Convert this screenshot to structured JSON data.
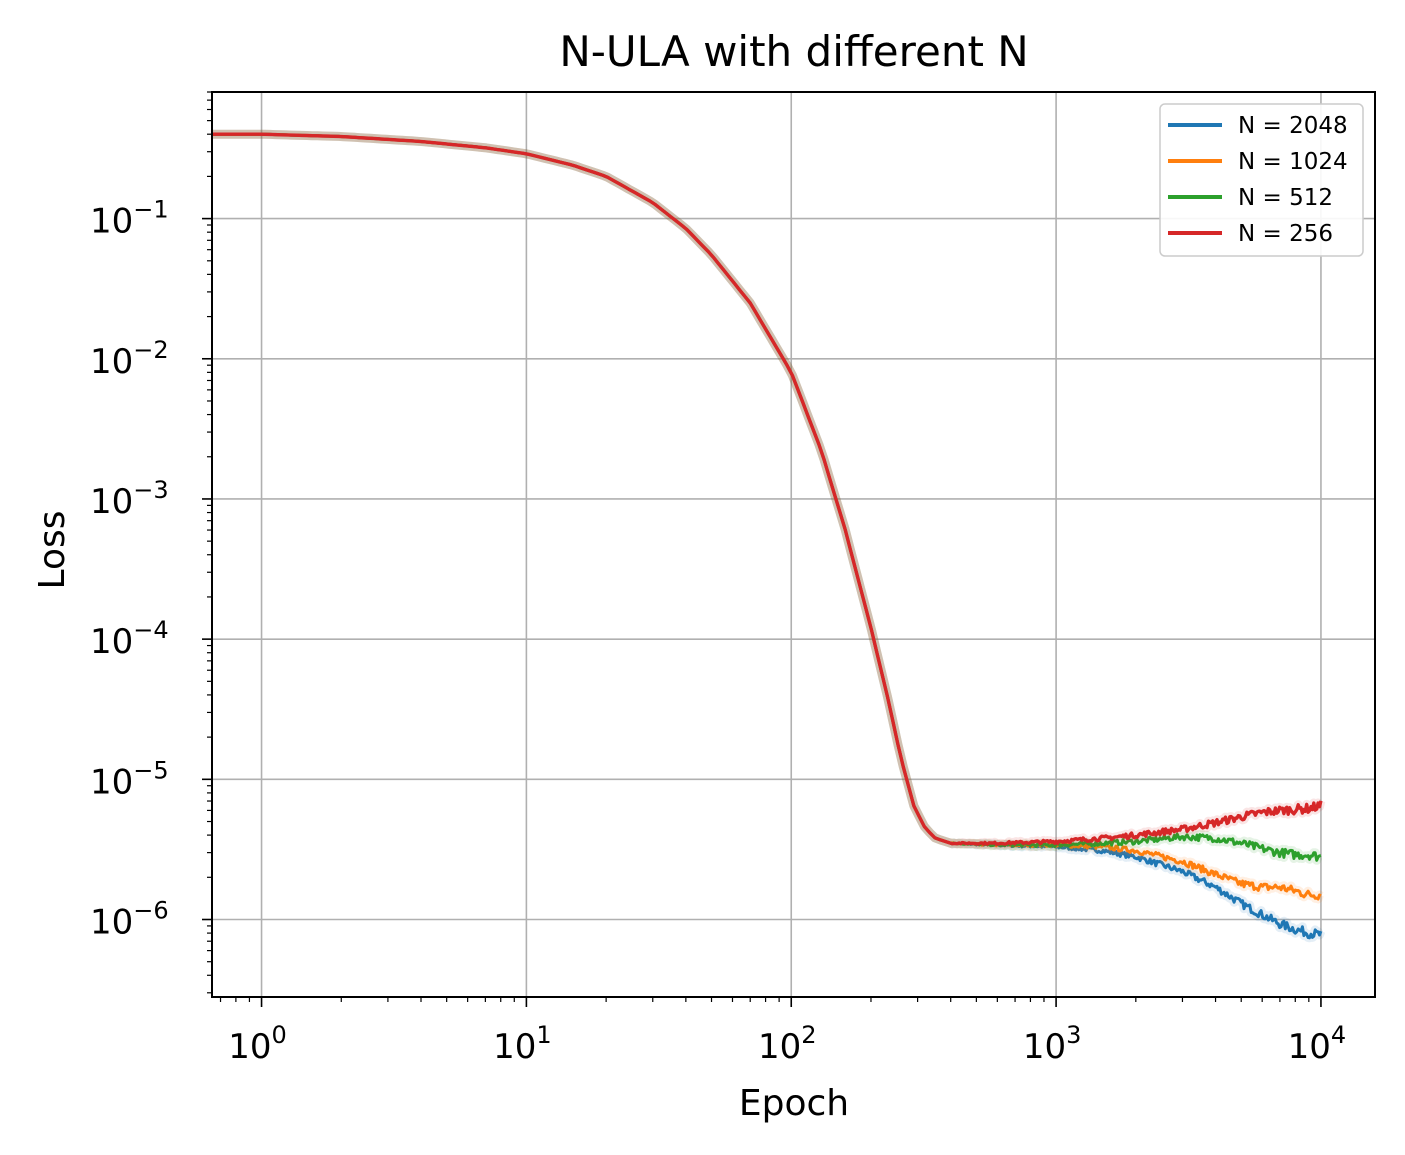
{
  "chart_data": {
    "type": "line",
    "title": "N-ULA with different N",
    "xlabel": "Epoch",
    "ylabel": "Loss",
    "xscale": "log",
    "yscale": "log",
    "xlim": [
      0.65,
      16000
    ],
    "ylim": [
      2.8e-07,
      0.8
    ],
    "grid": true,
    "legend_position": "top-right",
    "x_ticks": [
      {
        "value": 1,
        "base": "10",
        "exp": "0"
      },
      {
        "value": 10,
        "base": "10",
        "exp": "1"
      },
      {
        "value": 100,
        "base": "10",
        "exp": "2"
      },
      {
        "value": 1000,
        "base": "10",
        "exp": "3"
      },
      {
        "value": 10000,
        "base": "10",
        "exp": "4"
      }
    ],
    "y_ticks": [
      {
        "value": 0.1,
        "base": "10",
        "exp": "−1"
      },
      {
        "value": 0.01,
        "base": "10",
        "exp": "−2"
      },
      {
        "value": 0.001,
        "base": "10",
        "exp": "−3"
      },
      {
        "value": 0.0001,
        "base": "10",
        "exp": "−4"
      },
      {
        "value": 1e-05,
        "base": "10",
        "exp": "−5"
      },
      {
        "value": 1e-06,
        "base": "10",
        "exp": "−6"
      }
    ],
    "shared_curve": {
      "x": [
        0.65,
        1,
        2,
        4,
        7,
        10,
        15,
        20,
        30,
        40,
        50,
        70,
        100,
        130,
        160,
        200,
        230,
        260,
        290,
        320,
        350,
        400
      ],
      "y": [
        0.4,
        0.4,
        0.385,
        0.355,
        0.32,
        0.29,
        0.24,
        0.2,
        0.13,
        0.085,
        0.055,
        0.025,
        0.008,
        0.0022,
        0.0006,
        0.00012,
        4e-05,
        1.4e-05,
        6.5e-06,
        4.5e-06,
        3.8e-06,
        3.5e-06
      ]
    },
    "series": [
      {
        "name": "N = 2048",
        "color": "#1f77b4",
        "x": [
          400,
          600,
          1000,
          1500,
          2000,
          3000,
          4000,
          5000,
          6000,
          7000,
          8000,
          9000,
          10000
        ],
        "y": [
          3.5e-06,
          3.4e-06,
          3.3e-06,
          3.1e-06,
          2.8e-06,
          2.2e-06,
          1.7e-06,
          1.3e-06,
          1.08e-06,
          9.3e-07,
          8.5e-07,
          8e-07,
          7.8e-07
        ]
      },
      {
        "name": "N = 1024",
        "color": "#ff7f0e",
        "x": [
          400,
          600,
          1000,
          1500,
          2000,
          3000,
          4000,
          5000,
          6000,
          7000,
          8000,
          9000,
          10000
        ],
        "y": [
          3.5e-06,
          3.4e-06,
          3.4e-06,
          3.3e-06,
          3.1e-06,
          2.6e-06,
          2.1e-06,
          1.8e-06,
          1.7e-06,
          1.7e-06,
          1.6e-06,
          1.5e-06,
          1.5e-06
        ]
      },
      {
        "name": "N = 512",
        "color": "#2ca02c",
        "x": [
          400,
          600,
          1000,
          1500,
          2000,
          3000,
          4000,
          5000,
          6000,
          7000,
          8000,
          9000,
          10000
        ],
        "y": [
          3.5e-06,
          3.4e-06,
          3.4e-06,
          3.5e-06,
          3.6e-06,
          3.9e-06,
          3.8e-06,
          3.5e-06,
          3.2e-06,
          3e-06,
          2.9e-06,
          2.9e-06,
          2.8e-06
        ]
      },
      {
        "name": "N = 256",
        "color": "#d62728",
        "x": [
          400,
          600,
          1000,
          1500,
          2000,
          3000,
          4000,
          5000,
          6000,
          7000,
          8000,
          9000,
          10000
        ],
        "y": [
          3.5e-06,
          3.5e-06,
          3.6e-06,
          3.8e-06,
          4e-06,
          4.4e-06,
          4.9e-06,
          5.4e-06,
          5.8e-06,
          6e-06,
          6.1e-06,
          6.2e-06,
          6.5e-06
        ]
      }
    ]
  }
}
